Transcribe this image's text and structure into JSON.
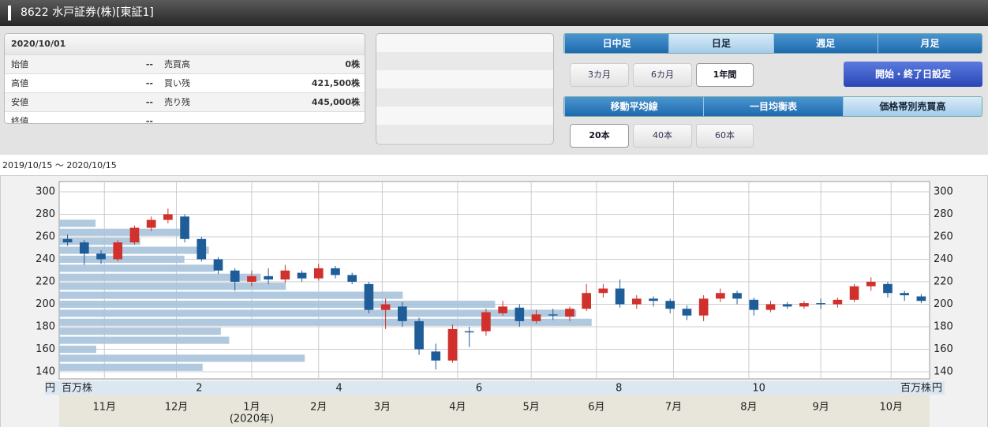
{
  "header": {
    "title": "8622 水戸証券(株)[東証1]"
  },
  "quote": {
    "date": "2020/10/01",
    "rows": [
      [
        "始値",
        "--",
        "売買高",
        "0株"
      ],
      [
        "高値",
        "--",
        "買い残",
        "421,500株"
      ],
      [
        "安値",
        "--",
        "売り残",
        "445,000株"
      ],
      [
        "終値",
        "--"
      ]
    ]
  },
  "controls": {
    "interval_tabs": [
      "日中足",
      "日足",
      "週足",
      "月足"
    ],
    "periods": [
      "3カ月",
      "6カ月",
      "1年間"
    ],
    "date_setting": "開始・終了日設定",
    "indicator_tabs": [
      "移動平均線",
      "一目均衡表",
      "価格帯別売買高"
    ],
    "bar_counts": [
      "20本",
      "40本",
      "60本"
    ]
  },
  "chart_data": {
    "type": "candlestick",
    "range_label": "2019/10/15 〜 2020/10/15",
    "y_unit": "円",
    "x_unit": "百万株",
    "year_label": "(2020年)",
    "open": [
      258,
      255,
      245,
      240,
      255,
      268,
      275,
      278,
      258,
      240,
      230,
      220,
      225,
      222,
      228,
      223,
      232,
      226,
      218,
      195,
      198,
      185,
      158,
      150,
      176,
      176,
      192,
      197,
      185,
      191,
      189,
      196,
      210,
      214,
      200,
      205,
      203,
      196,
      190,
      205,
      210,
      204,
      195,
      200,
      198,
      201,
      200,
      204,
      216,
      218,
      210,
      207
    ],
    "high": [
      262,
      257,
      248,
      257,
      270,
      278,
      285,
      280,
      260,
      242,
      232,
      230,
      232,
      235,
      230,
      236,
      234,
      228,
      220,
      205,
      202,
      188,
      165,
      182,
      180,
      196,
      203,
      200,
      195,
      196,
      198,
      218,
      218,
      222,
      208,
      207,
      205,
      199,
      208,
      214,
      212,
      206,
      203,
      202,
      203,
      205,
      206,
      218,
      224,
      220,
      212,
      209
    ],
    "low": [
      252,
      235,
      236,
      238,
      253,
      265,
      272,
      255,
      238,
      227,
      212,
      216,
      218,
      219,
      220,
      221,
      223,
      218,
      192,
      178,
      180,
      155,
      142,
      148,
      162,
      172,
      190,
      180,
      183,
      186,
      185,
      194,
      206,
      197,
      196,
      198,
      192,
      186,
      185,
      202,
      200,
      190,
      193,
      196,
      196,
      196,
      197,
      202,
      212,
      206,
      203,
      201
    ],
    "close": [
      255,
      245,
      240,
      255,
      268,
      275,
      280,
      258,
      240,
      230,
      220,
      225,
      222,
      230,
      223,
      232,
      226,
      220,
      195,
      200,
      185,
      160,
      150,
      178,
      175,
      193,
      198,
      185,
      191,
      190,
      196,
      210,
      214,
      200,
      205,
      203,
      196,
      190,
      205,
      210,
      205,
      195,
      200,
      198,
      201,
      200,
      204,
      216,
      220,
      210,
      208,
      203
    ],
    "up_color": "#d0312d",
    "down_color": "#1f5d99",
    "xlim": [
      -0.5,
      51.5
    ],
    "xticks": [
      {
        "value": 2.2,
        "label": "11月"
      },
      {
        "value": 6.5,
        "label": "12月"
      },
      {
        "value": 11,
        "label": "1月"
      },
      {
        "value": 15,
        "label": "2月"
      },
      {
        "value": 18.8,
        "label": "3月"
      },
      {
        "value": 23.3,
        "label": "4月"
      },
      {
        "value": 27.7,
        "label": "5月"
      },
      {
        "value": 31.6,
        "label": "6月"
      },
      {
        "value": 36.2,
        "label": "7月"
      },
      {
        "value": 40.7,
        "label": "8月"
      },
      {
        "value": 45,
        "label": "9月"
      },
      {
        "value": 49.2,
        "label": "10月"
      }
    ],
    "ylim": [
      133.7,
      309.1
    ],
    "yticks": [
      140,
      160,
      180,
      200,
      220,
      240,
      260,
      280,
      300
    ],
    "grid": true,
    "volume_profile": {
      "bins": [
        140,
        148,
        156,
        164,
        172,
        180,
        188,
        196,
        204,
        212,
        220,
        228,
        236,
        244,
        252,
        260,
        268,
        276
      ],
      "values": [
        2.05,
        3.51,
        0.53,
        2.43,
        2.31,
        7.61,
        7.39,
        6.23,
        4.91,
        3.24,
        2.88,
        2.23,
        1.79,
        2.14,
        1.16,
        1.73,
        0.52
      ],
      "color": "#a8c3da",
      "xlim": [
        0,
        12.44
      ],
      "xticks": [
        2,
        4,
        6,
        8,
        10
      ]
    }
  }
}
